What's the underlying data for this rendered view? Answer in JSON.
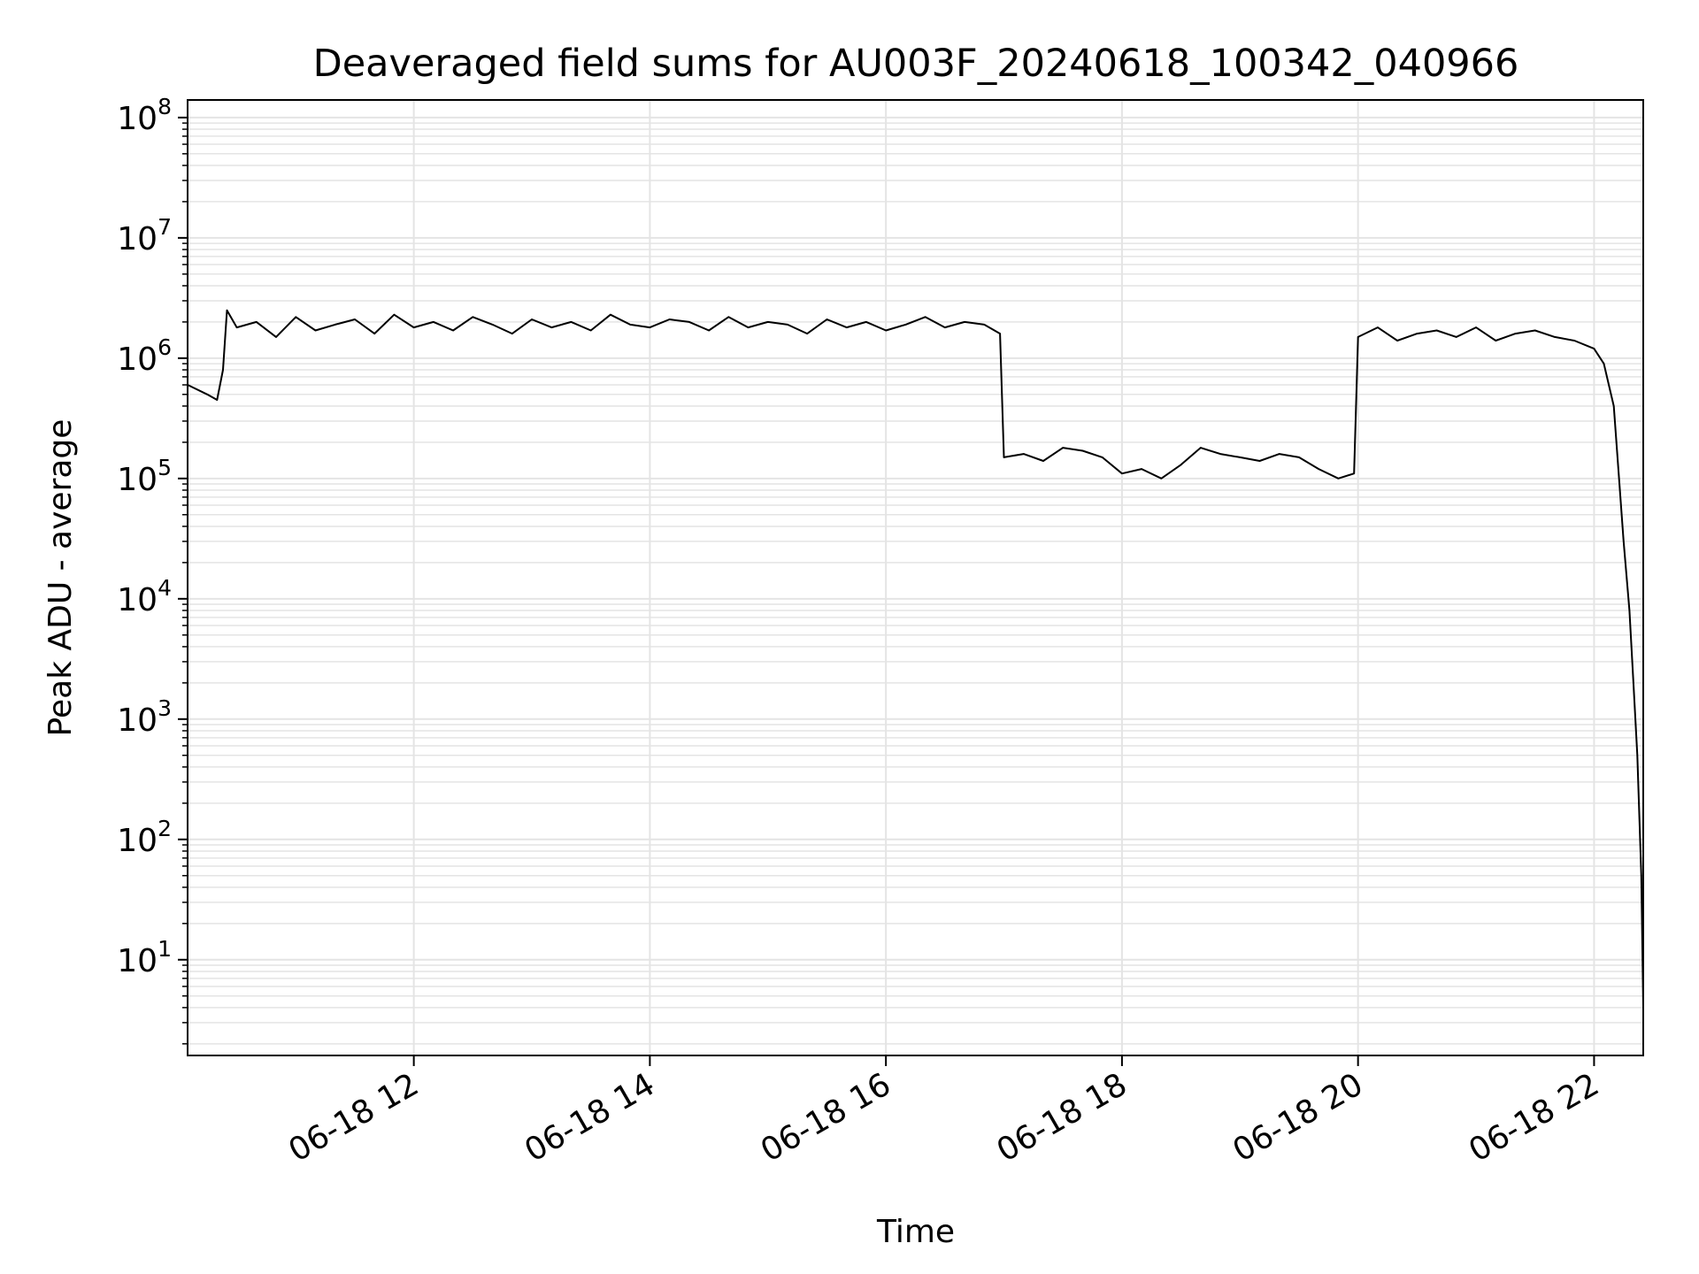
{
  "chart_data": {
    "type": "line",
    "title": "Deaveraged field sums for AU003F_20240618_100342_040966",
    "xlabel": "Time",
    "ylabel": "Peak ADU - average",
    "y_scale": "log",
    "ylim": [
      1.6,
      140000000
    ],
    "xlim": [
      "06-18 10:05",
      "06-18 22:25"
    ],
    "grid": true,
    "grid_minor_y": true,
    "line_color": "#000000",
    "grid_color": "#e4e4e4",
    "x_ticks": [
      {
        "value": "06-18 12:00",
        "label": "06-18 12"
      },
      {
        "value": "06-18 14:00",
        "label": "06-18 14"
      },
      {
        "value": "06-18 16:00",
        "label": "06-18 16"
      },
      {
        "value": "06-18 18:00",
        "label": "06-18 18"
      },
      {
        "value": "06-18 20:00",
        "label": "06-18 20"
      },
      {
        "value": "06-18 22:00",
        "label": "06-18 22"
      }
    ],
    "y_ticks": [
      {
        "value": 10,
        "base": "10",
        "exp": "1"
      },
      {
        "value": 100,
        "base": "10",
        "exp": "2"
      },
      {
        "value": 1000,
        "base": "10",
        "exp": "3"
      },
      {
        "value": 10000,
        "base": "10",
        "exp": "4"
      },
      {
        "value": 100000,
        "base": "10",
        "exp": "5"
      },
      {
        "value": 1000000,
        "base": "10",
        "exp": "6"
      },
      {
        "value": 10000000,
        "base": "10",
        "exp": "7"
      },
      {
        "value": 100000000,
        "base": "10",
        "exp": "8"
      }
    ],
    "series": [
      {
        "values_description_note": "",
        "x": [
          "06-18 10:05",
          "06-18 10:15",
          "06-18 10:20",
          "06-18 10:23",
          "06-18 10:25",
          "06-18 10:30",
          "06-18 10:40",
          "06-18 10:50",
          "06-18 11:00",
          "06-18 11:10",
          "06-18 11:20",
          "06-18 11:30",
          "06-18 11:40",
          "06-18 11:50",
          "06-18 12:00",
          "06-18 12:10",
          "06-18 12:20",
          "06-18 12:30",
          "06-18 12:40",
          "06-18 12:50",
          "06-18 13:00",
          "06-18 13:10",
          "06-18 13:20",
          "06-18 13:30",
          "06-18 13:40",
          "06-18 13:50",
          "06-18 14:00",
          "06-18 14:10",
          "06-18 14:20",
          "06-18 14:30",
          "06-18 14:40",
          "06-18 14:50",
          "06-18 15:00",
          "06-18 15:10",
          "06-18 15:20",
          "06-18 15:30",
          "06-18 15:40",
          "06-18 15:50",
          "06-18 16:00",
          "06-18 16:10",
          "06-18 16:20",
          "06-18 16:30",
          "06-18 16:40",
          "06-18 16:50",
          "06-18 16:58",
          "06-18 17:00",
          "06-18 17:10",
          "06-18 17:20",
          "06-18 17:30",
          "06-18 17:40",
          "06-18 17:50",
          "06-18 18:00",
          "06-18 18:10",
          "06-18 18:20",
          "06-18 18:30",
          "06-18 18:40",
          "06-18 18:50",
          "06-18 19:00",
          "06-18 19:10",
          "06-18 19:20",
          "06-18 19:30",
          "06-18 19:40",
          "06-18 19:50",
          "06-18 19:58",
          "06-18 20:00",
          "06-18 20:10",
          "06-18 20:20",
          "06-18 20:30",
          "06-18 20:40",
          "06-18 20:50",
          "06-18 21:00",
          "06-18 21:10",
          "06-18 21:20",
          "06-18 21:30",
          "06-18 21:40",
          "06-18 21:50",
          "06-18 22:00",
          "06-18 22:05",
          "06-18 22:10",
          "06-18 22:15",
          "06-18 22:18",
          "06-18 22:20",
          "06-18 22:22",
          "06-18 22:24",
          "06-18 22:25"
        ],
        "y": [
          600000,
          500000,
          450000,
          800000,
          2500000,
          1800000,
          2000000,
          1500000,
          2200000,
          1700000,
          1900000,
          2100000,
          1600000,
          2300000,
          1800000,
          2000000,
          1700000,
          2200000,
          1900000,
          1600000,
          2100000,
          1800000,
          2000000,
          1700000,
          2300000,
          1900000,
          1800000,
          2100000,
          2000000,
          1700000,
          2200000,
          1800000,
          2000000,
          1900000,
          1600000,
          2100000,
          1800000,
          2000000,
          1700000,
          1900000,
          2200000,
          1800000,
          2000000,
          1900000,
          1600000,
          150000,
          160000,
          140000,
          180000,
          170000,
          150000,
          110000,
          120000,
          100000,
          130000,
          180000,
          160000,
          150000,
          140000,
          160000,
          150000,
          120000,
          100000,
          110000,
          1500000,
          1800000,
          1400000,
          1600000,
          1700000,
          1500000,
          1800000,
          1400000,
          1600000,
          1700000,
          1500000,
          1400000,
          1200000,
          900000,
          400000,
          30000,
          8000,
          2000,
          500,
          50,
          4
        ]
      }
    ]
  }
}
